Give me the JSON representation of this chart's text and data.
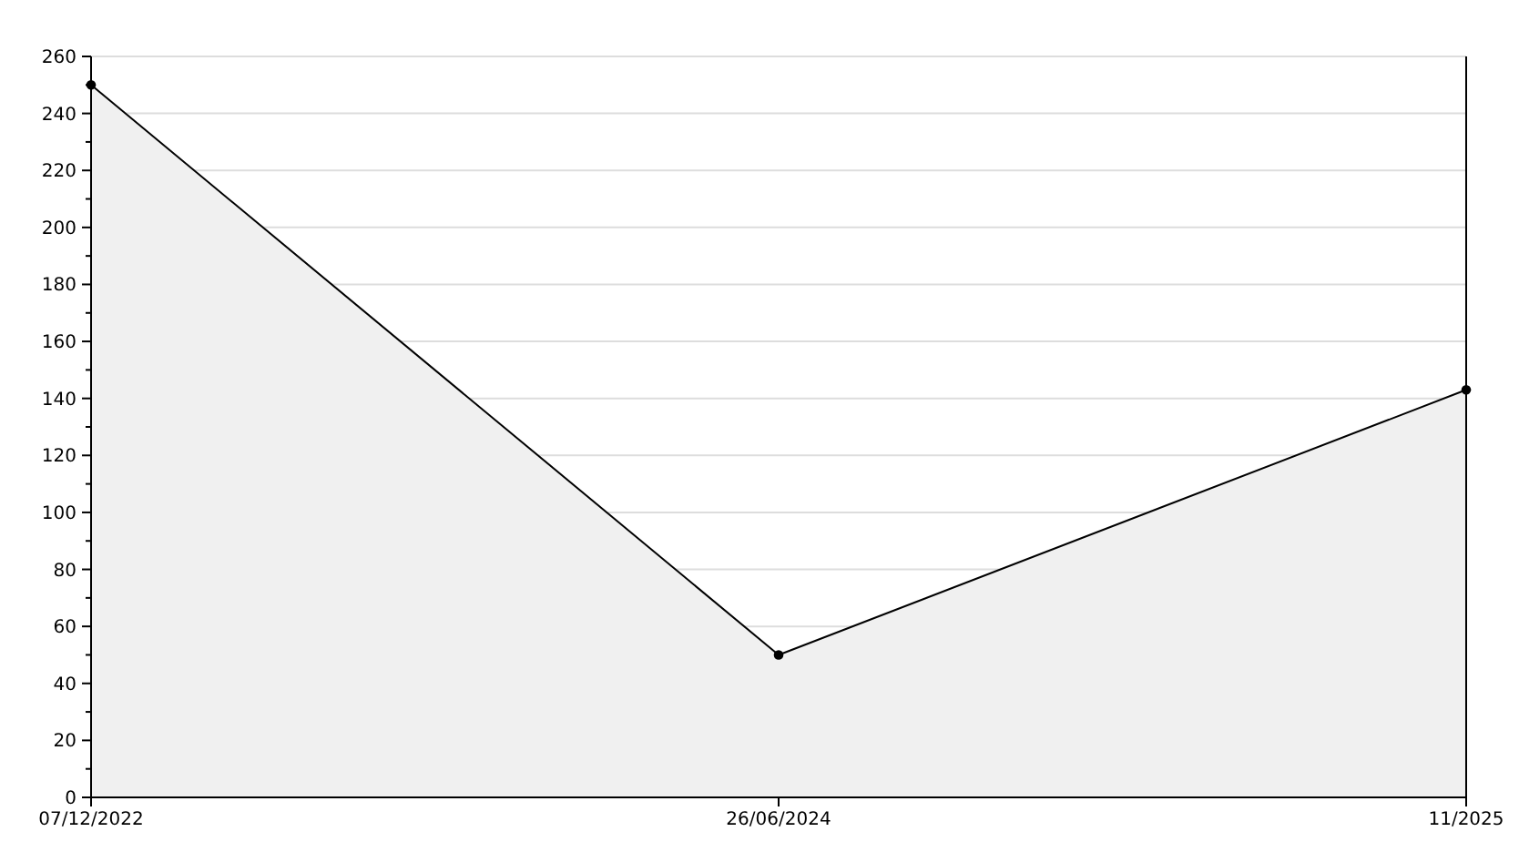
{
  "chart_data": {
    "type": "area",
    "categories": [
      "07/12/2022",
      "26/06/2024",
      "11/2025"
    ],
    "series": [
      {
        "color": "#000000",
        "values": [
          250,
          50,
          143
        ]
      }
    ],
    "ylim": [
      0,
      260
    ],
    "yticks": [
      0,
      {
        "value": 10,
        "label": null
      },
      20,
      {
        "value": 30,
        "label": null
      },
      40,
      {
        "value": 50,
        "label": null
      },
      60,
      {
        "value": 70,
        "label": null
      },
      80,
      {
        "value": 90,
        "label": null
      },
      100,
      {
        "value": 110,
        "label": null
      },
      120,
      {
        "value": 130,
        "label": null
      },
      140,
      {
        "value": 150,
        "label": null
      },
      160,
      {
        "value": 170,
        "label": null
      },
      180,
      {
        "value": 190,
        "label": null
      },
      200,
      {
        "value": 210,
        "label": null
      },
      220,
      {
        "value": 230,
        "label": null
      },
      240,
      {
        "value": 250,
        "label": null
      },
      260
    ],
    "grid": "y",
    "marker": "circle"
  }
}
